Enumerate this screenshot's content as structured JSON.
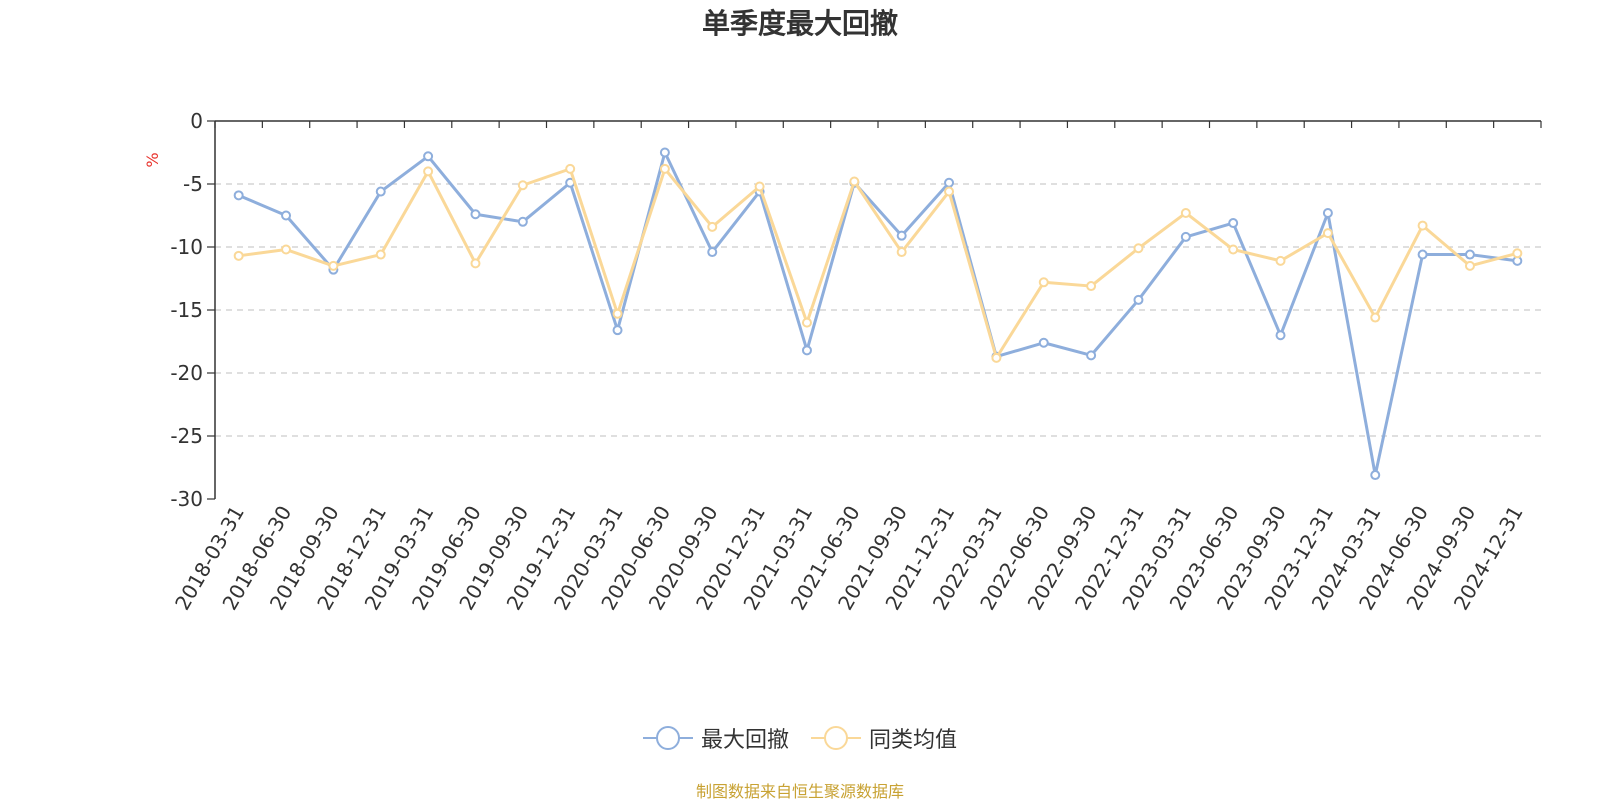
{
  "chart_data": {
    "type": "line",
    "title": "单季度最大回撤",
    "ylabel": "%",
    "ylim": [
      -30,
      0
    ],
    "yticks": [
      0,
      -5,
      -10,
      -15,
      -20,
      -25,
      -30
    ],
    "grid": true,
    "legend_position": "bottom",
    "x": [
      "2018-03-31",
      "2018-06-30",
      "2018-09-30",
      "2018-12-31",
      "2019-03-31",
      "2019-06-30",
      "2019-09-30",
      "2019-12-31",
      "2020-03-31",
      "2020-06-30",
      "2020-09-30",
      "2020-12-31",
      "2021-03-31",
      "2021-06-30",
      "2021-09-30",
      "2021-12-31",
      "2022-03-31",
      "2022-06-30",
      "2022-09-30",
      "2022-12-31",
      "2023-03-31",
      "2023-06-30",
      "2023-09-30",
      "2023-12-31",
      "2024-03-31",
      "2024-06-30",
      "2024-09-30",
      "2024-12-31"
    ],
    "series": [
      {
        "name": "最大回撤",
        "color": "#8eaedc",
        "values": [
          -5.9,
          -7.5,
          -11.8,
          -5.6,
          -2.8,
          -7.4,
          -8.0,
          -4.9,
          -16.6,
          -2.5,
          -10.4,
          -5.6,
          -18.2,
          -4.9,
          -9.1,
          -4.9,
          -18.7,
          -17.6,
          -18.6,
          -14.2,
          -9.2,
          -8.1,
          -17.0,
          -7.3,
          -28.1,
          -10.6,
          -10.6,
          -11.1
        ]
      },
      {
        "name": "同类均值",
        "color": "#fad898",
        "values": [
          -10.7,
          -10.2,
          -11.5,
          -10.6,
          -4.0,
          -11.3,
          -5.1,
          -3.8,
          -15.3,
          -3.8,
          -8.4,
          -5.2,
          -16.0,
          -4.8,
          -10.4,
          -5.6,
          -18.8,
          -12.8,
          -13.1,
          -10.1,
          -7.3,
          -10.2,
          -11.1,
          -8.9,
          -15.6,
          -8.3,
          -11.5,
          -10.5
        ]
      }
    ]
  },
  "footer": {
    "source_note": "制图数据来自恒生聚源数据库"
  }
}
